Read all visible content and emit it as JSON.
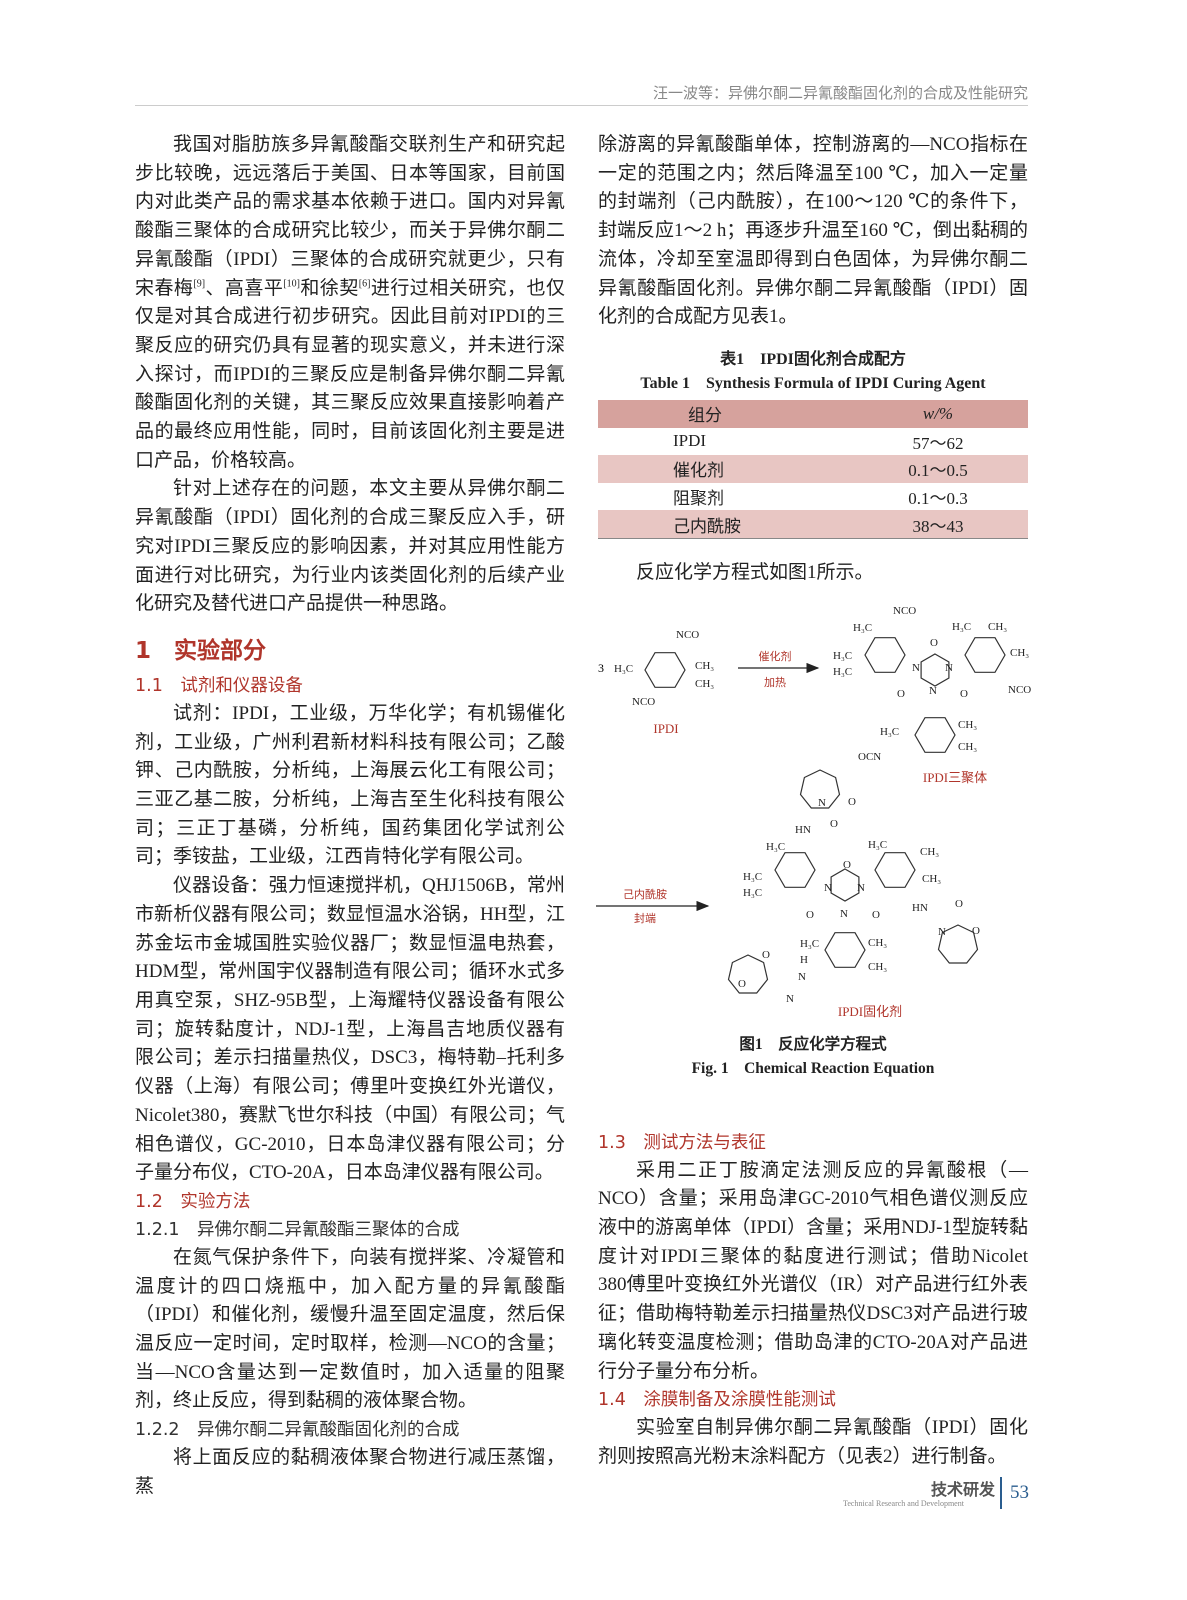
{
  "header": {
    "running_title": "汪一波等：异佛尔酮二异氰酸酯固化剂的合成及性能研究"
  },
  "left": {
    "p1_a": "我国对脂肪族多异氰酸酯交联剂生产和研究起步比较晚，远远落后于美国、日本等国家，目前国内对此类产品的需求基本依赖于进口。国内对异氰酸酯三聚体的合成研究比较少，而关于异佛尔酮二异氰酸酯（IPDI）三聚体的合成研究就更少，只有宋春梅",
    "p1_ref1": "[9]",
    "p1_b": "、高喜平",
    "p1_ref2": "[10]",
    "p1_c": "和徐契",
    "p1_ref3": "[6]",
    "p1_d": "进行过相关研究，也仅仅是对其合成进行初步研究。因此目前对IPDI的三聚反应的研究仍具有显著的现实意义，并未进行深入探讨，而IPDI的三聚反应是制备异佛尔酮二异氰酸酯固化剂的关键，其三聚反应效果直接影响着产品的最终应用性能，同时，目前该固化剂主要是进口产品，价格较高。",
    "p2": "针对上述存在的问题，本文主要从异佛尔酮二异氰酸酯（IPDI）固化剂的合成三聚反应入手，研究对IPDI三聚反应的影响因素，并对其应用性能方面进行对比研究，为行业内该类固化剂的后续产业化研究及替代进口产品提供一种思路。",
    "sec1": "1　实验部分",
    "sec1_1": "1.1　试剂和仪器设备",
    "p3": "试剂：IPDI，工业级，万华化学；有机锡催化剂，工业级，广州利君新材料科技有限公司；乙酸钾、己内酰胺，分析纯，上海展云化工有限公司；三亚乙基二胺，分析纯，上海吉至生化科技有限公司；三正丁基磷，分析纯，国药集团化学试剂公司；季铵盐，工业级，江西肯特化学有限公司。",
    "p4": "仪器设备：强力恒速搅拌机，QHJ1506B，常州市新析仪器有限公司；数显恒温水浴锅，HH型，江苏金坛市金城国胜实验仪器厂；数显恒温电热套，HDM型，常州国宇仪器制造有限公司；循环水式多用真空泵，SHZ-95B型，上海耀特仪器设备有限公司；旋转黏度计，NDJ-1型，上海昌吉地质仪器有限公司；差示扫描量热仪，DSC3，梅特勒–托利多仪器（上海）有限公司；傅里叶变换红外光谱仪，Nicolet380，赛默飞世尔科技（中国）有限公司；气相色谱仪，GC-2010，日本岛津仪器有限公司；分子量分布仪，CTO-20A，日本岛津仪器有限公司。",
    "sec1_2": "1.2　实验方法",
    "sec1_2_1": "1.2.1　异佛尔酮二异氰酸酯三聚体的合成",
    "p5": "在氮气保护条件下，向装有搅拌桨、冷凝管和温度计的四口烧瓶中，加入配方量的异氰酸酯（IPDI）和催化剂，缓慢升温至固定温度，然后保温反应一定时间，定时取样，检测—NCO的含量；当—NCO含量达到一定数值时，加入适量的阻聚剂，终止反应，得到黏稠的液体聚合物。",
    "sec1_2_2": "1.2.2　异佛尔酮二异氰酸酯固化剂的合成",
    "p6": "将上面反应的黏稠液体聚合物进行减压蒸馏，蒸"
  },
  "right": {
    "p6_cont": "除游离的异氰酸酯单体，控制游离的—NCO指标在一定的范围之内；然后降温至100 ℃，加入一定量的封端剂（己内酰胺），在100～120 ℃的条件下，封端反应1～2 h；再逐步升温至160 ℃，倒出黏稠的流体，冷却至室温即得到白色固体，为异佛尔酮二异氰酸酯固化剂。异佛尔酮二异氰酸酯（IPDI）固化剂的合成配方见表1。",
    "table": {
      "caption_cn": "表1　IPDI固化剂合成配方",
      "caption_en": "Table 1　Synthesis Formula of IPDI Curing Agent",
      "headers": [
        "组分",
        "w/%"
      ],
      "rows": [
        [
          "IPDI",
          "57～62"
        ],
        [
          "催化剂",
          "0.1～0.5"
        ],
        [
          "阻聚剂",
          "0.1～0.3"
        ],
        [
          "己内酰胺",
          "38～43"
        ]
      ],
      "header_color": "#d6a29d",
      "stripe_color": "#e8c6c3"
    },
    "p7": "反应化学方程式如图1所示。",
    "figure": {
      "caption_cn": "图1　反应化学方程式",
      "caption_en": "Fig. 1　Chemical Reaction Equation",
      "reagent_coef": "3",
      "ipdi_label": "IPDI",
      "step1_top": "催化剂",
      "step1_bottom": "加热",
      "trimer_label": "IPDI三聚体",
      "step2_top": "己内酰胺",
      "step2_bottom": "封端",
      "product_label": "IPDI固化剂",
      "atom_labels": [
        "NCO",
        "H₃C",
        "CH₃",
        "CH₃",
        "NCO",
        "NCO",
        "H₃C",
        "H₃C",
        "H₃C",
        "O",
        "N",
        "N",
        "O",
        "N",
        "O",
        "H₃C",
        "CH₃",
        "CH₃",
        "NCO",
        "H₃C",
        "CH₃",
        "CH₃",
        "OCN",
        "N",
        "O",
        "HN",
        "O",
        "H₃C",
        "H₃C",
        "H₃C",
        "O",
        "N",
        "N",
        "O",
        "N",
        "O",
        "H₃C",
        "CH₃",
        "CH₃",
        "HN",
        "O",
        "N",
        "O",
        "H₃C",
        "CH₃",
        "CH₃",
        "H",
        "N",
        "O",
        "N",
        "O"
      ],
      "label_color": "#b0352b"
    },
    "sec1_3": "1.3　测试方法与表征",
    "p8": "采用二正丁胺滴定法测反应的异氰酸根（—NCO）含量；采用岛津GC-2010气相色谱仪测反应液中的游离单体（IPDI）含量；采用NDJ-1型旋转黏度计对IPDI三聚体的黏度进行测试；借助Nicolet 380傅里叶变换红外光谱仪（IR）对产品进行红外表征；借助梅特勒差示扫描量热仪DSC3对产品进行玻璃化转变温度检测；借助岛津的CTO-20A对产品进行分子量分布分析。",
    "sec1_4": "1.4　涂膜制备及涂膜性能测试",
    "p9": "实验室自制异佛尔酮二异氰酸酯（IPDI）固化剂则按照高光粉末涂料配方（见表2）进行制备。"
  },
  "footer": {
    "section_cn": "技术研发",
    "section_en": "Technical Research and Development",
    "page_number": "53"
  }
}
